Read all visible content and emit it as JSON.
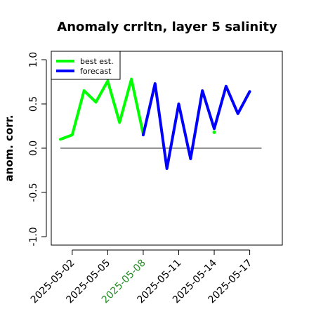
{
  "chart_data": {
    "type": "line",
    "title": "Anomaly crrltn, layer 5 salinity",
    "xlabel": "",
    "ylabel": "anom. corr.",
    "ylim": [
      -1.0,
      1.0
    ],
    "yticks": [
      "-1.0",
      "-0.5",
      "0.0",
      "0.5",
      "1.0"
    ],
    "ytick_values": [
      -1.0,
      -0.5,
      0.0,
      0.5,
      1.0
    ],
    "x": [
      "2025-05-01",
      "2025-05-02",
      "2025-05-03",
      "2025-05-04",
      "2025-05-05",
      "2025-05-06",
      "2025-05-07",
      "2025-05-08",
      "2025-05-09",
      "2025-05-10",
      "2025-05-11",
      "2025-05-12",
      "2025-05-13",
      "2025-05-14",
      "2025-05-15",
      "2025-05-16",
      "2025-05-17"
    ],
    "xticks": [
      "2025-05-02",
      "2025-05-05",
      "2025-05-08",
      "2025-05-11",
      "2025-05-14",
      "2025-05-17"
    ],
    "highlight_tick": "2025-05-08",
    "highlight_color": "#228B22",
    "reference_line": 0.0,
    "series": [
      {
        "name": "best est.",
        "color": "#00ff00",
        "values": [
          0.1,
          0.15,
          0.65,
          0.52,
          0.76,
          0.29,
          0.78,
          0.16,
          null,
          null,
          null,
          null,
          null,
          0.18,
          null,
          null,
          null
        ]
      },
      {
        "name": "forecast",
        "color": "#0000ff",
        "values": [
          null,
          null,
          null,
          null,
          null,
          null,
          null,
          0.15,
          0.73,
          -0.23,
          0.5,
          -0.12,
          0.65,
          0.22,
          0.7,
          0.39,
          0.64
        ]
      }
    ],
    "legend_position": "top-left",
    "grid": false
  }
}
